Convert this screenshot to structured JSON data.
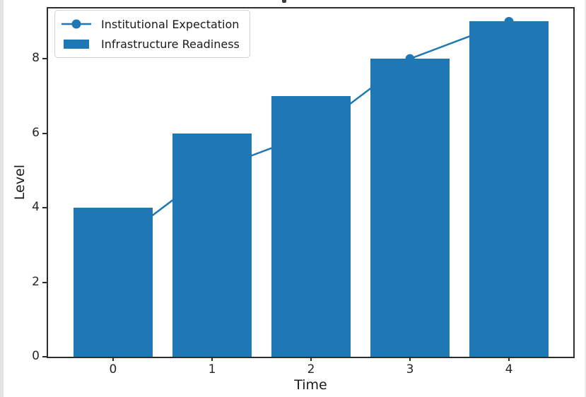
{
  "page": {
    "background": "#ffffff",
    "left_edge_color": "#e2e2e2",
    "spine_color": "#2e2e2e",
    "text_color": "#262626"
  },
  "chart_data": {
    "type": "bar",
    "subtype": "bar-and-line-combo",
    "x": [
      0,
      1,
      2,
      3,
      4
    ],
    "categories": [
      "0",
      "1",
      "2",
      "3",
      "4"
    ],
    "series": [
      {
        "name": "Institutional Expectation",
        "kind": "line",
        "marker": "circle",
        "values": [
          3,
          5,
          6,
          8,
          9
        ]
      },
      {
        "name": "Infrastructure Readiness",
        "kind": "bar",
        "values": [
          4,
          6,
          7,
          8,
          9
        ]
      }
    ],
    "title": "",
    "xlabel": "Time",
    "ylabel": "Level",
    "xticks": [
      0,
      1,
      2,
      3,
      4
    ],
    "yticks": [
      0,
      2,
      4,
      6,
      8
    ],
    "xlim": [
      -0.657,
      4.65
    ],
    "ylim": [
      0,
      9.35
    ],
    "bar_width": 0.8,
    "color": "#1f77b4",
    "legend_position": "upper left",
    "grid": false
  }
}
